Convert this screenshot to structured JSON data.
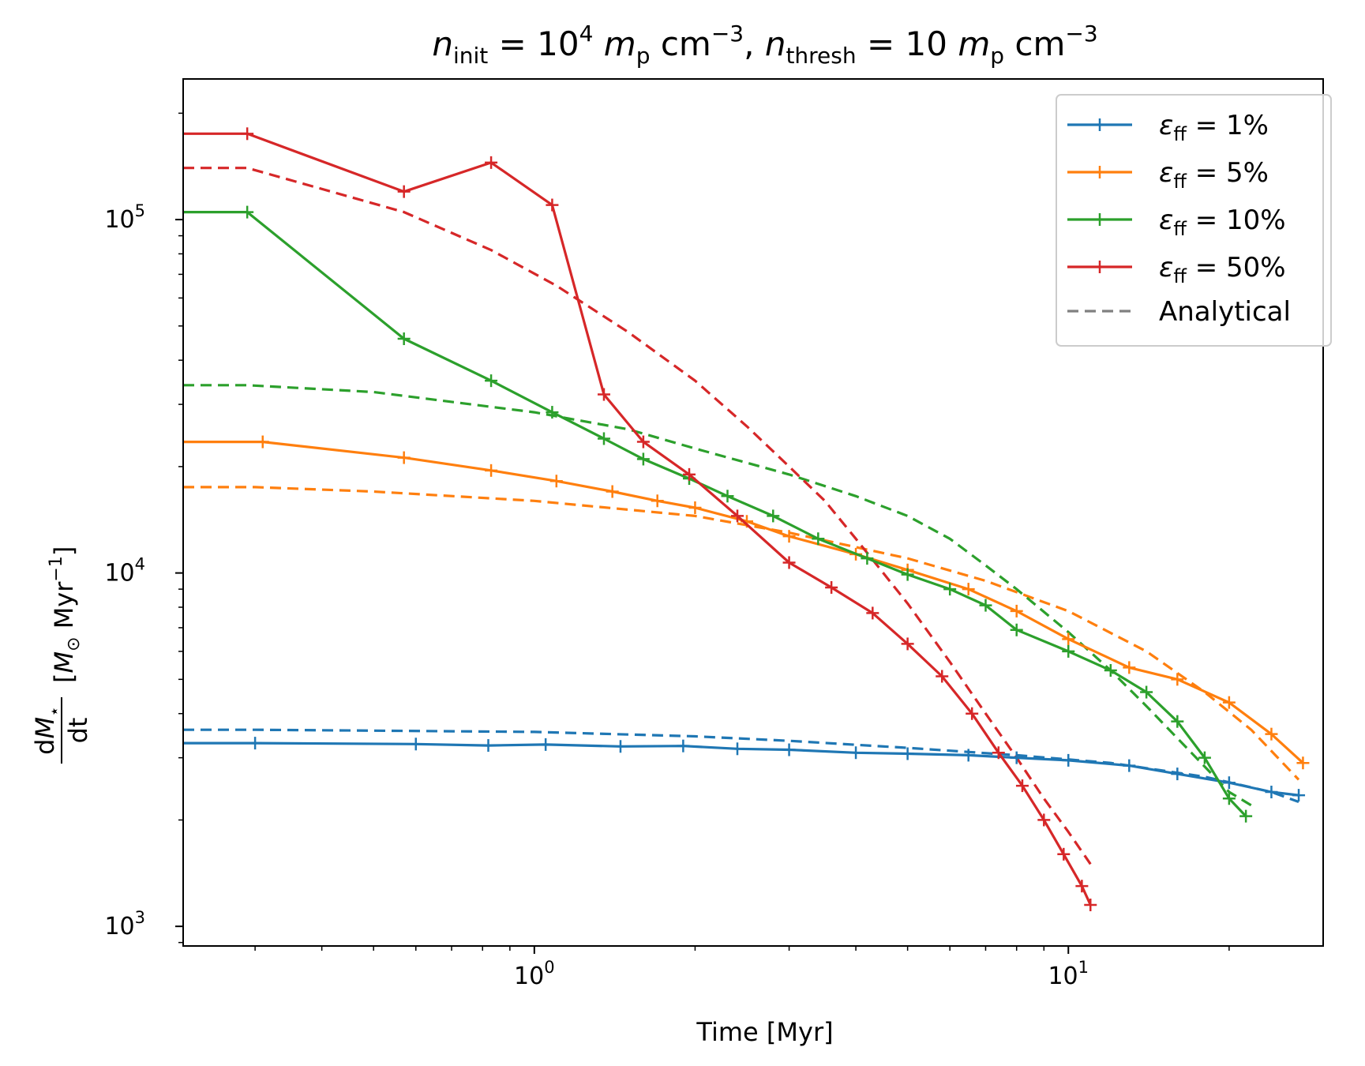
{
  "chart_data": {
    "type": "line",
    "title_parts": {
      "n1": "n",
      "sub1": "init",
      "eq1": " = 10",
      "sup1": "4",
      "m1": " m",
      "p1": "p",
      "cm1": " cm",
      "sup_cm1": "−3",
      "comma": ", ",
      "n2": "n",
      "sub2": "thresh",
      "eq2": " = 10",
      "m2": " m",
      "p2": "p",
      "cm2": " cm",
      "sup_cm2": "−3"
    },
    "xlabel": "Time [Myr]",
    "ylabel_parts": {
      "num_d": "d",
      "num_M": "M",
      "num_star": "⋆",
      "den": "dt",
      "unit_open": "[",
      "unit_M": "M",
      "unit_sun": "⊙",
      "unit_myr": " Myr",
      "unit_sup": "−1",
      "unit_close": "]"
    },
    "x_scale": "log",
    "y_scale": "log",
    "xlim": [
      0.22,
      30
    ],
    "ylim": [
      880,
      250000
    ],
    "x_ticks": [
      {
        "value": 1,
        "base": "10",
        "exp": "0"
      },
      {
        "value": 10,
        "base": "10",
        "exp": "1"
      }
    ],
    "y_ticks": [
      {
        "value": 1000,
        "base": "10",
        "exp": "3"
      },
      {
        "value": 10000,
        "base": "10",
        "exp": "4"
      },
      {
        "value": 100000,
        "base": "10",
        "exp": "5"
      }
    ],
    "legend_position": "top-right",
    "grid": false,
    "series": [
      {
        "name": "ε_ff = 1%",
        "legend": {
          "eps": "ε",
          "sub": "ff",
          "rest": " = 1%"
        },
        "color": "#1f77b4",
        "style": "solid-plus",
        "x": [
          0.22,
          0.3,
          0.6,
          0.82,
          1.05,
          1.45,
          1.9,
          2.4,
          3.0,
          4.0,
          5.0,
          6.5,
          8.0,
          10,
          13,
          16,
          20,
          24,
          27
        ],
        "y": [
          3300,
          3300,
          3280,
          3250,
          3270,
          3230,
          3240,
          3180,
          3160,
          3100,
          3080,
          3050,
          3000,
          2950,
          2850,
          2700,
          2550,
          2400,
          2350
        ]
      },
      {
        "name": "ε_ff = 5%",
        "legend": {
          "eps": "ε",
          "sub": "ff",
          "rest": " = 5%"
        },
        "color": "#ff7f0e",
        "style": "solid-plus",
        "x": [
          0.22,
          0.31,
          0.57,
          0.83,
          1.1,
          1.4,
          1.7,
          2.0,
          2.5,
          3.0,
          4.0,
          5.0,
          6.5,
          8.0,
          10,
          13,
          16,
          20,
          24,
          27.5
        ],
        "y": [
          23500,
          23500,
          21200,
          19500,
          18200,
          17000,
          16000,
          15300,
          14000,
          12700,
          11300,
          10200,
          9000,
          7800,
          6500,
          5400,
          5000,
          4300,
          3500,
          2900
        ]
      },
      {
        "name": "ε_ff = 10%",
        "legend": {
          "eps": "ε",
          "sub": "ff",
          "rest": " = 10%"
        },
        "color": "#2ca02c",
        "style": "solid-plus",
        "x": [
          0.22,
          0.29,
          0.57,
          0.83,
          1.08,
          1.35,
          1.6,
          1.95,
          2.3,
          2.8,
          3.4,
          4.2,
          5.0,
          6.0,
          7.0,
          8.0,
          10,
          12,
          14,
          16,
          18,
          20,
          21.5
        ],
        "y": [
          105000,
          105000,
          46000,
          35000,
          28500,
          24000,
          21000,
          18500,
          16500,
          14500,
          12500,
          11000,
          9900,
          9000,
          8100,
          6900,
          6000,
          5300,
          4600,
          3800,
          3000,
          2300,
          2050
        ]
      },
      {
        "name": "ε_ff = 50%",
        "legend": {
          "eps": "ε",
          "sub": "ff",
          "rest": " = 50%"
        },
        "color": "#d62728",
        "style": "solid-plus",
        "x": [
          0.22,
          0.29,
          0.57,
          0.83,
          1.08,
          1.35,
          1.6,
          1.95,
          2.4,
          3.0,
          3.6,
          4.3,
          5.0,
          5.8,
          6.6,
          7.4,
          8.2,
          9.0,
          9.8,
          10.6,
          11.0
        ],
        "y": [
          175000,
          175000,
          120000,
          145000,
          110000,
          32000,
          23500,
          19000,
          14500,
          10700,
          9100,
          7700,
          6300,
          5100,
          4000,
          3100,
          2500,
          2000,
          1600,
          1300,
          1150
        ]
      },
      {
        "name": "ε_ff = 1% analytical",
        "color": "#1f77b4",
        "style": "dashed",
        "x": [
          0.22,
          0.3,
          0.5,
          1.0,
          2.0,
          3.0,
          5.0,
          8.0,
          12,
          18,
          24,
          27
        ],
        "y": [
          3600,
          3600,
          3580,
          3550,
          3450,
          3350,
          3200,
          3050,
          2900,
          2650,
          2400,
          2250
        ]
      },
      {
        "name": "ε_ff = 5% analytical",
        "color": "#ff7f0e",
        "style": "dashed",
        "x": [
          0.22,
          0.3,
          0.5,
          1.0,
          2.0,
          3.0,
          5.0,
          7.0,
          10,
          14,
          18,
          22,
          27
        ],
        "y": [
          17500,
          17500,
          17000,
          16000,
          14500,
          13000,
          11000,
          9500,
          7800,
          6000,
          4600,
          3600,
          2600
        ]
      },
      {
        "name": "ε_ff = 10% analytical",
        "color": "#2ca02c",
        "style": "dashed",
        "x": [
          0.22,
          0.29,
          0.5,
          1.0,
          1.5,
          2.0,
          3.0,
          4.0,
          5.0,
          6.0,
          7.0,
          8.0,
          10,
          12,
          14,
          17,
          20,
          22
        ],
        "y": [
          34000,
          34000,
          32500,
          28500,
          25500,
          22500,
          19000,
          16500,
          14500,
          12500,
          10500,
          9000,
          6800,
          5300,
          4200,
          3100,
          2400,
          2200
        ]
      },
      {
        "name": "ε_ff = 50% analytical",
        "color": "#d62728",
        "style": "dashed",
        "x": [
          0.22,
          0.29,
          0.57,
          0.83,
          1.1,
          1.5,
          2.0,
          2.5,
          3.0,
          3.5,
          4.0,
          5.0,
          6.0,
          7.0,
          8.0,
          9.0,
          10,
          11
        ],
        "y": [
          140000,
          140000,
          105000,
          82000,
          65000,
          48000,
          35000,
          26000,
          20000,
          16000,
          12500,
          8200,
          5600,
          4000,
          3000,
          2300,
          1850,
          1500
        ]
      }
    ],
    "legend_analytical": {
      "label": "Analytical",
      "color": "#808080",
      "style": "dashed"
    }
  }
}
